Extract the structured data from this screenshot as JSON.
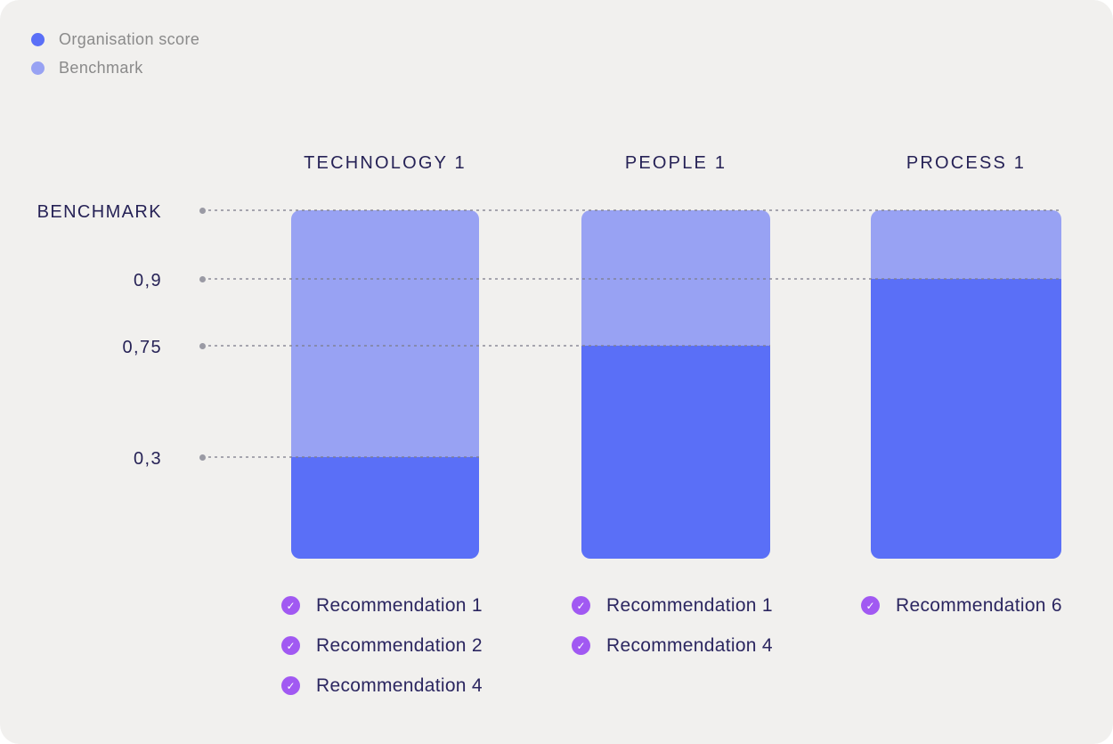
{
  "page": {
    "background_color": "#f1f0ee"
  },
  "colors": {
    "organisation_score": "#5a6ff7",
    "benchmark": "#98a2f3",
    "check_purple": "#a159f2",
    "text_navy": "#262256",
    "text_gray": "#8a8a8a",
    "leader_gray": "#9a9aa4"
  },
  "legend": {
    "items": [
      {
        "label": "Organisation score",
        "color": "#5a6ff7"
      },
      {
        "label": "Benchmark",
        "color": "#98a2f3"
      }
    ]
  },
  "icons": {
    "check": "✓"
  },
  "chart_data": {
    "type": "bar",
    "stacked": true,
    "title": "",
    "legend_position": "top-left",
    "grid": "dotted-leader-lines",
    "categories": [
      "TECHNOLOGY 1",
      "PEOPLE 1",
      "PROCESS 1"
    ],
    "series": [
      {
        "name": "Organisation score",
        "color": "#5a6ff7",
        "values": [
          0.3,
          0.75,
          0.9
        ],
        "value_labels": [
          "0,3",
          "0,75",
          "0,9"
        ]
      },
      {
        "name": "Benchmark",
        "color": "#98a2f3",
        "values": [
          1,
          1,
          1
        ],
        "value_labels": [
          "BENCHMARK",
          "BENCHMARK",
          "BENCHMARK"
        ]
      }
    ],
    "axis_ticks": [
      {
        "label": "BENCHMARK",
        "value": 1
      },
      {
        "label": "0,9",
        "value": 0.9
      },
      {
        "label": "0,75",
        "value": 0.75
      },
      {
        "label": "0,3",
        "value": 0.3
      }
    ],
    "recommendations": [
      [
        "Recommendation 1",
        "Recommendation 2",
        "Recommendation 4"
      ],
      [
        "Recommendation 1",
        "Recommendation 4"
      ],
      [
        "Recommendation 6"
      ]
    ]
  }
}
